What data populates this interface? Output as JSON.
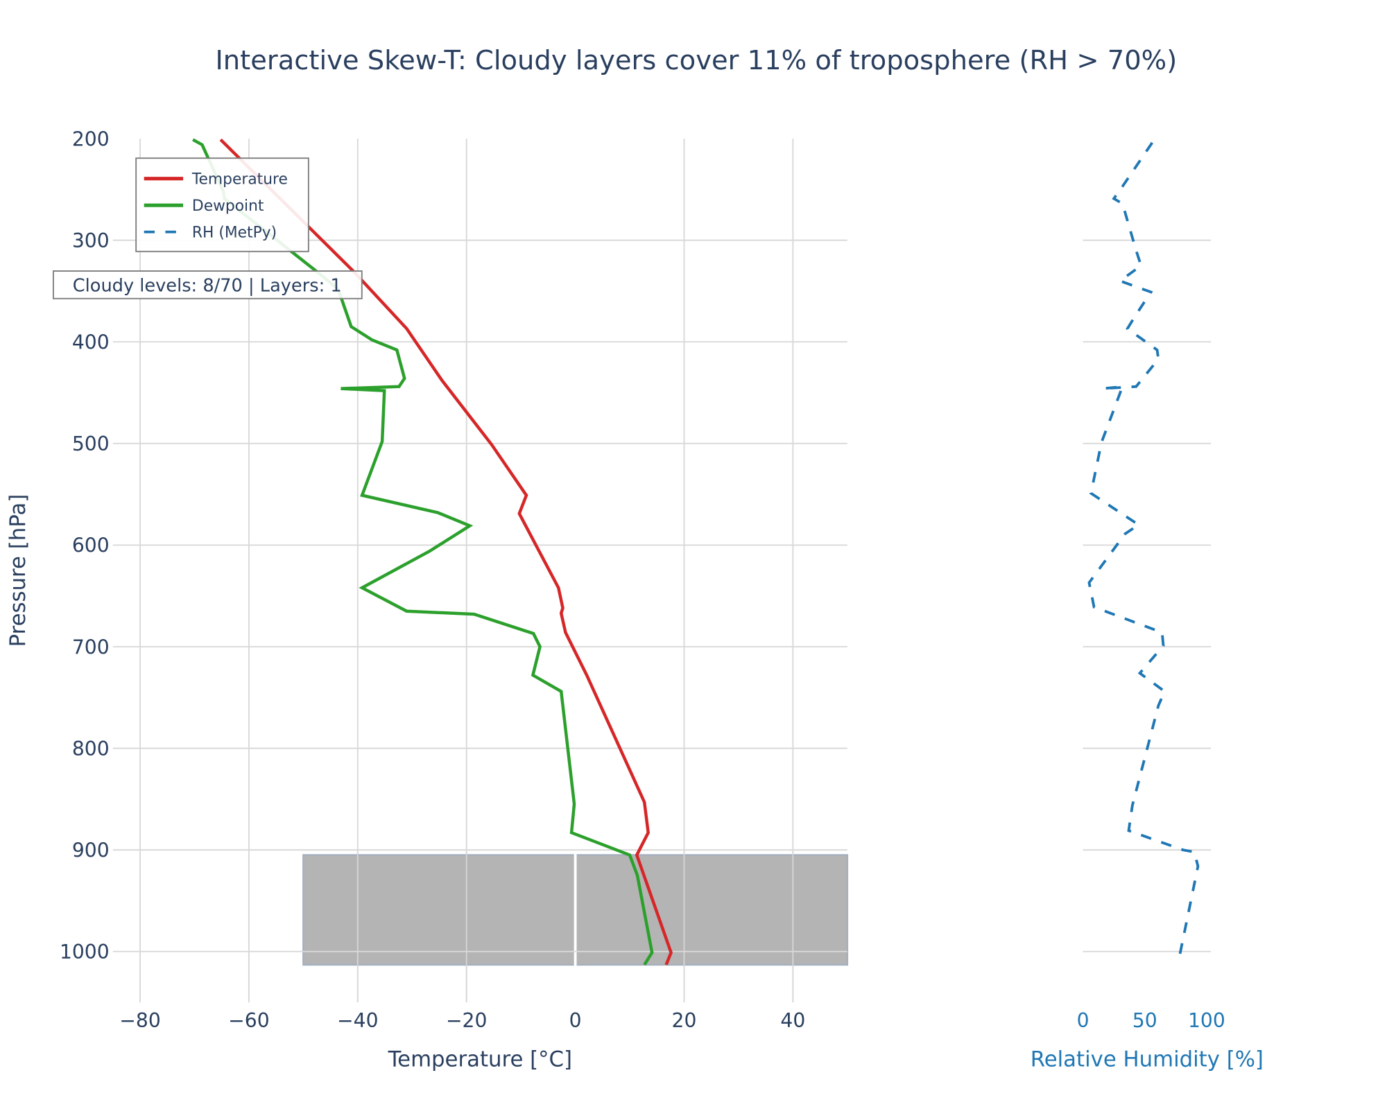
{
  "title": "Interactive Skew-T: Cloudy layers cover 11% of troposphere (RH > 70%)",
  "annotation": "Cloudy levels: 8/70 | Layers: 1",
  "colors": {
    "temperature": "#d62728",
    "dewpoint": "#2ca02c",
    "rh": "#1f77b4",
    "cloud_shade": "#b4b4b4",
    "text": "#2a3f5f",
    "grid": "#d9d9d9"
  },
  "chart_data": [
    {
      "type": "line",
      "xlabel": "Temperature [°C]",
      "ylabel": "Pressure [hPa]",
      "xlim": [
        -85,
        50
      ],
      "ylim": [
        1050,
        200
      ],
      "y_reversed": true,
      "grid": true,
      "legend_placement": "top-left",
      "xticks": [
        "−80",
        "−60",
        "−40",
        "−20",
        "0",
        "20",
        "40"
      ],
      "xtick_values": [
        -80,
        -60,
        -40,
        -20,
        0,
        20,
        40
      ],
      "yticks": [
        "200",
        "300",
        "400",
        "500",
        "600",
        "700",
        "800",
        "900",
        "1000"
      ],
      "ytick_values": [
        200,
        300,
        400,
        500,
        600,
        700,
        800,
        900,
        1000
      ],
      "shaded_region": {
        "label": "cloudy layer",
        "temperature_range": [
          -50,
          50
        ],
        "pressure_range": [
          905,
          1013
        ]
      },
      "series": [
        {
          "name": "Temperature",
          "style": "solid",
          "points": [
            [
              -65.2,
              201
            ],
            [
              -40.7,
              331
            ],
            [
              -31,
              387
            ],
            [
              -24.5,
              438
            ],
            [
              -15.4,
              501
            ],
            [
              -9,
              551
            ],
            [
              -10.3,
              569
            ],
            [
              -3.1,
              642
            ],
            [
              -2.3,
              662
            ],
            [
              -2.6,
              667
            ],
            [
              -1.8,
              686
            ],
            [
              2.1,
              728
            ],
            [
              12.7,
              853
            ],
            [
              13.4,
              883
            ],
            [
              11.3,
              905
            ],
            [
              17.6,
              1001
            ],
            [
              16.7,
              1013
            ]
          ]
        },
        {
          "name": "Dewpoint",
          "style": "solid",
          "points": [
            [
              -70.3,
              201
            ],
            [
              -68.6,
              206
            ],
            [
              -64.7,
              252
            ],
            [
              -64.5,
              259
            ],
            [
              -48.2,
              328
            ],
            [
              -43.6,
              348
            ],
            [
              -41.2,
              385
            ],
            [
              -37.4,
              398
            ],
            [
              -32.8,
              408
            ],
            [
              -31.4,
              436
            ],
            [
              -32.4,
              444
            ],
            [
              -43.1,
              446
            ],
            [
              -35.1,
              448
            ],
            [
              -35.5,
              498
            ],
            [
              -39.2,
              551
            ],
            [
              -25.3,
              568
            ],
            [
              -19.4,
              581
            ],
            [
              -26.8,
              606
            ],
            [
              -39.2,
              642
            ],
            [
              -31,
              665
            ],
            [
              -18.6,
              668
            ],
            [
              -7.7,
              687
            ],
            [
              -6.5,
              700
            ],
            [
              -7.8,
              728
            ],
            [
              -2.6,
              744
            ],
            [
              -0.3,
              850
            ],
            [
              -0.2,
              855
            ],
            [
              -0.7,
              883
            ],
            [
              10,
              905
            ],
            [
              11.4,
              925
            ],
            [
              14.1,
              1001
            ],
            [
              12.7,
              1013
            ]
          ]
        }
      ]
    },
    {
      "type": "line",
      "xlabel": "Relative Humidity [%]",
      "xlim": [
        0,
        103.5
      ],
      "ylim": [
        1050,
        200
      ],
      "y_reversed": true,
      "grid": true,
      "xticks": [
        "0",
        "50",
        "100"
      ],
      "xtick_values": [
        0,
        50,
        100
      ],
      "series": [
        {
          "name": "RH (MetPy)",
          "style": "dashed",
          "points": [
            [
              56,
              204
            ],
            [
              32,
              247
            ],
            [
              25,
              259
            ],
            [
              32,
              264
            ],
            [
              43,
              310
            ],
            [
              47,
              325
            ],
            [
              30,
              340
            ],
            [
              55,
              351
            ],
            [
              42,
              375
            ],
            [
              36,
              387
            ],
            [
              60,
              408
            ],
            [
              61,
              417
            ],
            [
              43,
              444
            ],
            [
              16,
              446
            ],
            [
              32,
              444
            ],
            [
              15,
              499
            ],
            [
              6.5,
              549
            ],
            [
              45,
              580
            ],
            [
              34,
              589
            ],
            [
              5,
              637
            ],
            [
              9,
              661
            ],
            [
              64,
              686
            ],
            [
              65,
              699
            ],
            [
              46,
              726
            ],
            [
              66,
              744
            ],
            [
              61,
              758
            ],
            [
              40,
              856
            ],
            [
              37,
              881
            ],
            [
              81,
              900
            ],
            [
              90,
              902
            ],
            [
              93,
              916
            ],
            [
              77,
              1011
            ]
          ]
        }
      ]
    }
  ]
}
